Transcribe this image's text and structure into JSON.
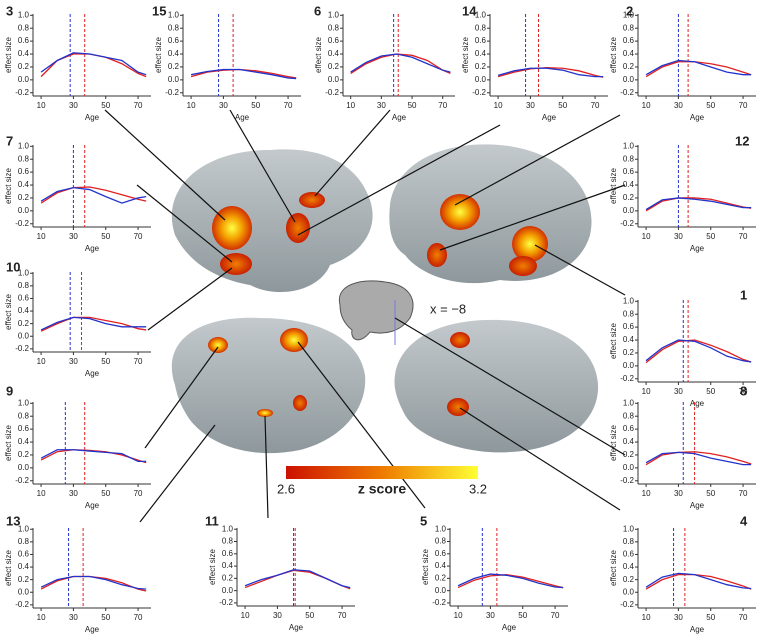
{
  "axes": {
    "xlabel": "Age",
    "ylabel": "effect size",
    "xlim": [
      5,
      78
    ],
    "ylim": [
      -0.25,
      1.02
    ],
    "xticks": [
      10,
      30,
      50,
      70
    ],
    "yticks": [
      -0.2,
      {
        "value": 0,
        "label": "0.0"
      },
      0.2,
      0.4,
      0.6,
      0.8,
      {
        "value": 1,
        "label": "1.0"
      }
    ]
  },
  "colorbar": {
    "label": "z score",
    "range": [
      2.6,
      3.2
    ]
  },
  "slice_label": "x = −8",
  "chart_data": [
    {
      "type": "line",
      "title": "3",
      "x": [
        10,
        20,
        30,
        40,
        50,
        60,
        70,
        75
      ],
      "series": [
        {
          "color": "#e02020",
          "values": [
            0.05,
            0.3,
            0.4,
            0.4,
            0.35,
            0.25,
            0.1,
            0.05
          ]
        },
        {
          "color": "#2233cc",
          "values": [
            0.12,
            0.3,
            0.42,
            0.4,
            0.35,
            0.3,
            0.12,
            0.08
          ]
        }
      ],
      "vlines": [
        {
          "color": "#2233cc",
          "x": 28
        },
        {
          "color": "#e02020",
          "x": 37
        }
      ]
    },
    {
      "type": "line",
      "title": "15",
      "x": [
        10,
        20,
        30,
        40,
        50,
        60,
        70,
        75
      ],
      "series": [
        {
          "color": "#e02020",
          "values": [
            0.05,
            0.12,
            0.15,
            0.16,
            0.14,
            0.1,
            0.05,
            0.03
          ]
        },
        {
          "color": "#2233cc",
          "values": [
            0.08,
            0.13,
            0.16,
            0.16,
            0.12,
            0.08,
            0.03,
            0.02
          ]
        }
      ],
      "vlines": [
        {
          "color": "#2233cc",
          "x": 27
        },
        {
          "color": "#e02020",
          "x": 36
        }
      ]
    },
    {
      "type": "line",
      "title": "6",
      "x": [
        10,
        20,
        30,
        40,
        50,
        60,
        70,
        75
      ],
      "series": [
        {
          "color": "#e02020",
          "values": [
            0.1,
            0.25,
            0.35,
            0.4,
            0.38,
            0.3,
            0.15,
            0.1
          ]
        },
        {
          "color": "#2233cc",
          "values": [
            0.12,
            0.27,
            0.37,
            0.4,
            0.35,
            0.25,
            0.15,
            0.12
          ]
        }
      ],
      "vlines": [
        {
          "color": "#2233cc",
          "x": 38
        },
        {
          "color": "#e02020",
          "x": 41
        }
      ]
    },
    {
      "type": "line",
      "title": "14",
      "x": [
        10,
        20,
        30,
        40,
        50,
        60,
        70,
        75
      ],
      "series": [
        {
          "color": "#e02020",
          "values": [
            0.05,
            0.12,
            0.17,
            0.19,
            0.18,
            0.14,
            0.07,
            0.04
          ]
        },
        {
          "color": "#2233cc",
          "values": [
            0.07,
            0.14,
            0.18,
            0.18,
            0.15,
            0.08,
            0.05,
            0.05
          ]
        }
      ],
      "vlines": [
        {
          "color": "#2233cc",
          "x": 27
        },
        {
          "color": "#e02020",
          "x": 35
        }
      ]
    },
    {
      "type": "line",
      "title": "2",
      "x": [
        10,
        20,
        30,
        40,
        50,
        60,
        70,
        75
      ],
      "series": [
        {
          "color": "#e02020",
          "values": [
            0.05,
            0.2,
            0.28,
            0.28,
            0.25,
            0.2,
            0.12,
            0.08
          ]
        },
        {
          "color": "#2233cc",
          "values": [
            0.08,
            0.22,
            0.3,
            0.28,
            0.2,
            0.12,
            0.08,
            0.08
          ]
        }
      ],
      "vlines": [
        {
          "color": "#2233cc",
          "x": 30
        },
        {
          "color": "#e02020",
          "x": 36
        }
      ]
    },
    {
      "type": "line",
      "title": "7",
      "x": [
        10,
        20,
        30,
        40,
        50,
        60,
        70,
        75
      ],
      "series": [
        {
          "color": "#e02020",
          "values": [
            0.12,
            0.28,
            0.36,
            0.37,
            0.32,
            0.25,
            0.18,
            0.15
          ]
        },
        {
          "color": "#2233cc",
          "values": [
            0.15,
            0.3,
            0.36,
            0.33,
            0.22,
            0.12,
            0.2,
            0.22
          ]
        }
      ],
      "vlines": [
        {
          "color": "#2233cc",
          "x": 30
        },
        {
          "color": "#e02020",
          "x": 37
        }
      ]
    },
    {
      "type": "line",
      "title": "12",
      "x": [
        10,
        20,
        30,
        40,
        50,
        60,
        70,
        75
      ],
      "series": [
        {
          "color": "#e02020",
          "values": [
            0,
            0.15,
            0.2,
            0.2,
            0.18,
            0.12,
            0.06,
            0.04
          ]
        },
        {
          "color": "#2233cc",
          "values": [
            0.02,
            0.17,
            0.2,
            0.18,
            0.15,
            0.1,
            0.05,
            0.05
          ]
        }
      ],
      "vlines": [
        {
          "color": "#2233cc",
          "x": 30
        },
        {
          "color": "#e02020",
          "x": 36
        }
      ]
    },
    {
      "type": "line",
      "title": "10",
      "x": [
        10,
        20,
        30,
        40,
        50,
        60,
        70,
        75
      ],
      "series": [
        {
          "color": "#e02020",
          "values": [
            0.08,
            0.2,
            0.3,
            0.3,
            0.25,
            0.2,
            0.12,
            0.1
          ]
        },
        {
          "color": "#2233cc",
          "values": [
            0.1,
            0.22,
            0.3,
            0.28,
            0.2,
            0.15,
            0.15,
            0.15
          ]
        }
      ],
      "vlines": [
        {
          "color": "#2233cc",
          "x": 28
        },
        {
          "color": "#e02020",
          "x": 35
        }
      ]
    },
    {
      "type": "line",
      "title": "1",
      "x": [
        10,
        20,
        30,
        40,
        50,
        60,
        70,
        75
      ],
      "series": [
        {
          "color": "#e02020",
          "values": [
            0.05,
            0.25,
            0.38,
            0.4,
            0.32,
            0.22,
            0.1,
            0.06
          ]
        },
        {
          "color": "#2233cc",
          "values": [
            0.08,
            0.28,
            0.4,
            0.38,
            0.28,
            0.15,
            0.08,
            0.06
          ]
        }
      ],
      "vlines": [
        {
          "color": "#2233cc",
          "x": 33
        },
        {
          "color": "#e02020",
          "x": 36
        }
      ]
    },
    {
      "type": "line",
      "title": "9",
      "x": [
        10,
        20,
        30,
        40,
        50,
        60,
        70,
        75
      ],
      "series": [
        {
          "color": "#e02020",
          "values": [
            0.12,
            0.25,
            0.28,
            0.27,
            0.25,
            0.2,
            0.12,
            0.08
          ]
        },
        {
          "color": "#2233cc",
          "values": [
            0.15,
            0.28,
            0.28,
            0.26,
            0.24,
            0.22,
            0.1,
            0.1
          ]
        }
      ],
      "vlines": [
        {
          "color": "#2233cc",
          "x": 25
        },
        {
          "color": "#e02020",
          "x": 37
        }
      ]
    },
    {
      "type": "line",
      "title": "8",
      "x": [
        10,
        20,
        30,
        40,
        50,
        60,
        70,
        75
      ],
      "series": [
        {
          "color": "#e02020",
          "values": [
            0.05,
            0.2,
            0.24,
            0.25,
            0.22,
            0.17,
            0.1,
            0.06
          ]
        },
        {
          "color": "#2233cc",
          "values": [
            0.08,
            0.22,
            0.24,
            0.22,
            0.15,
            0.1,
            0.05,
            0.05
          ]
        }
      ],
      "vlines": [
        {
          "color": "#2233cc",
          "x": 33
        },
        {
          "color": "#e02020",
          "x": 40
        }
      ]
    },
    {
      "type": "line",
      "title": "13",
      "x": [
        10,
        20,
        30,
        40,
        50,
        60,
        70,
        75
      ],
      "series": [
        {
          "color": "#e02020",
          "values": [
            0.05,
            0.18,
            0.25,
            0.25,
            0.22,
            0.15,
            0.05,
            0.02
          ]
        },
        {
          "color": "#2233cc",
          "values": [
            0.08,
            0.2,
            0.25,
            0.25,
            0.2,
            0.12,
            0.06,
            0.05
          ]
        }
      ],
      "vlines": [
        {
          "color": "#2233cc",
          "x": 27
        },
        {
          "color": "#e02020",
          "x": 36
        }
      ]
    },
    {
      "type": "line",
      "title": "11",
      "x": [
        10,
        20,
        30,
        40,
        50,
        60,
        70,
        75
      ],
      "series": [
        {
          "color": "#e02020",
          "values": [
            0.05,
            0.15,
            0.25,
            0.33,
            0.3,
            0.2,
            0.08,
            0.03
          ]
        },
        {
          "color": "#2233cc",
          "values": [
            0.08,
            0.18,
            0.25,
            0.34,
            0.32,
            0.2,
            0.08,
            0.05
          ]
        }
      ],
      "vlines": [
        {
          "color": "#2233cc",
          "x": 40
        },
        {
          "color": "#e02020",
          "x": 41
        }
      ]
    },
    {
      "type": "line",
      "title": "5",
      "x": [
        10,
        20,
        30,
        40,
        50,
        60,
        70,
        75
      ],
      "series": [
        {
          "color": "#e02020",
          "values": [
            0.05,
            0.17,
            0.24,
            0.26,
            0.22,
            0.15,
            0.08,
            0.05
          ]
        },
        {
          "color": "#2233cc",
          "values": [
            0.08,
            0.2,
            0.27,
            0.25,
            0.2,
            0.12,
            0.06,
            0.05
          ]
        }
      ],
      "vlines": [
        {
          "color": "#2233cc",
          "x": 25
        },
        {
          "color": "#e02020",
          "x": 34
        }
      ]
    },
    {
      "type": "line",
      "title": "4",
      "x": [
        10,
        20,
        30,
        40,
        50,
        60,
        70,
        75
      ],
      "series": [
        {
          "color": "#e02020",
          "values": [
            0.05,
            0.2,
            0.28,
            0.28,
            0.25,
            0.18,
            0.1,
            0.05
          ]
        },
        {
          "color": "#2233cc",
          "values": [
            0.08,
            0.24,
            0.3,
            0.28,
            0.2,
            0.12,
            0.07,
            0.06
          ]
        }
      ],
      "vlines": [
        {
          "color": "#2233cc",
          "x": 27
        },
        {
          "color": "#e02020",
          "x": 34
        }
      ]
    }
  ]
}
